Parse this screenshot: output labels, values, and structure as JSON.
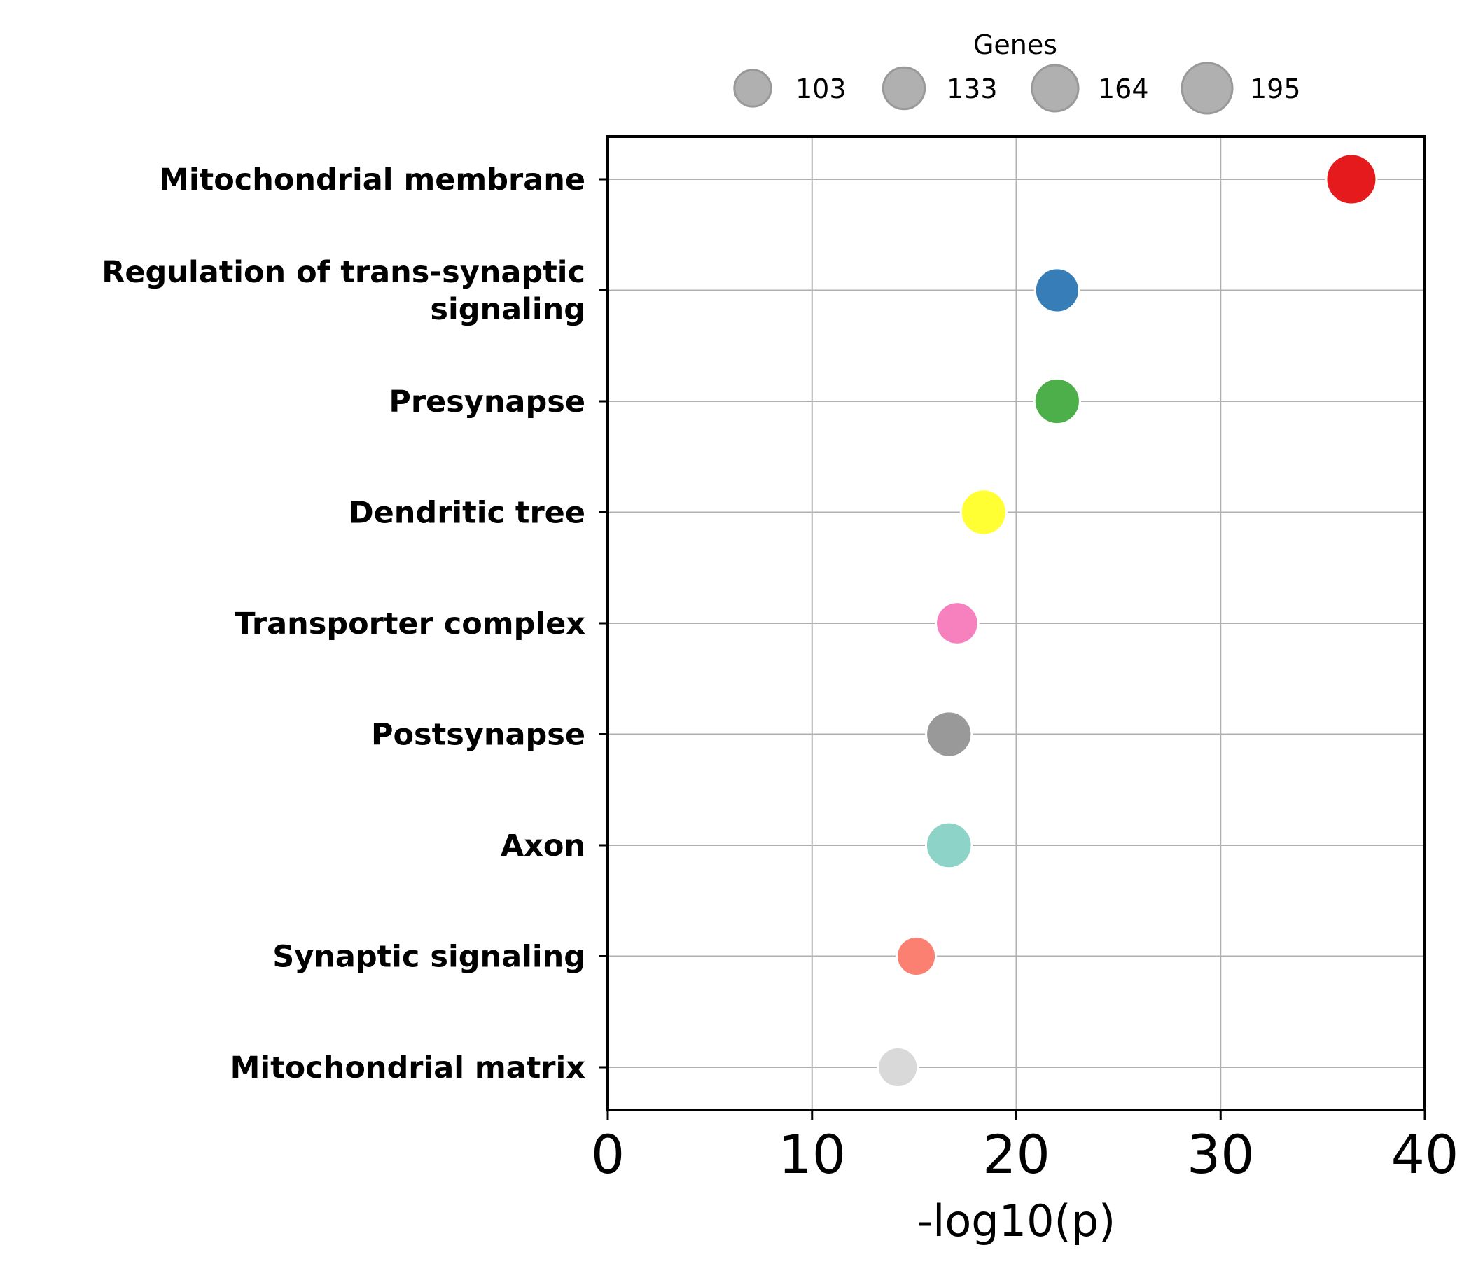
{
  "chart_data": {
    "type": "scatter",
    "xlabel": "-log10(p)",
    "xlim": [
      0,
      40
    ],
    "xticks": [
      0,
      10,
      20,
      30,
      40
    ],
    "grid": true,
    "legend": {
      "title": "Genes",
      "placement": "top-center",
      "entries": [
        {
          "label": "103",
          "value": 103
        },
        {
          "label": "133",
          "value": 133
        },
        {
          "label": "164",
          "value": 164
        },
        {
          "label": "195",
          "value": 195
        }
      ],
      "color": "#b0b0b0"
    },
    "points": [
      {
        "category": "Mitochondrial membrane",
        "lines": [
          "Mitochondrial membrane"
        ],
        "x": 36.4,
        "genes": 195,
        "color": "#e41a1c"
      },
      {
        "category": "Regulation of trans-synaptic signaling",
        "lines": [
          "Regulation of trans-synaptic",
          "signaling"
        ],
        "x": 22.0,
        "genes": 150,
        "color": "#377eb8"
      },
      {
        "category": "Presynapse",
        "lines": [
          "Presynapse"
        ],
        "x": 22.0,
        "genes": 160,
        "color": "#4daf4a"
      },
      {
        "category": "Dendritic tree",
        "lines": [
          "Dendritic tree"
        ],
        "x": 18.4,
        "genes": 160,
        "color": "#ffff33"
      },
      {
        "category": "Transporter complex",
        "lines": [
          "Transporter complex"
        ],
        "x": 17.1,
        "genes": 138,
        "color": "#f781bf"
      },
      {
        "category": "Postsynapse",
        "lines": [
          "Postsynapse"
        ],
        "x": 16.7,
        "genes": 160,
        "color": "#999999"
      },
      {
        "category": "Axon",
        "lines": [
          "Axon"
        ],
        "x": 16.7,
        "genes": 162,
        "color": "#8dd3c7"
      },
      {
        "category": "Synaptic signaling",
        "lines": [
          "Synaptic signaling"
        ],
        "x": 15.1,
        "genes": 118,
        "color": "#fb8072"
      },
      {
        "category": "Mitochondrial matrix",
        "lines": [
          "Mitochondrial matrix"
        ],
        "x": 14.2,
        "genes": 122,
        "color": "#d9d9d9"
      }
    ]
  }
}
